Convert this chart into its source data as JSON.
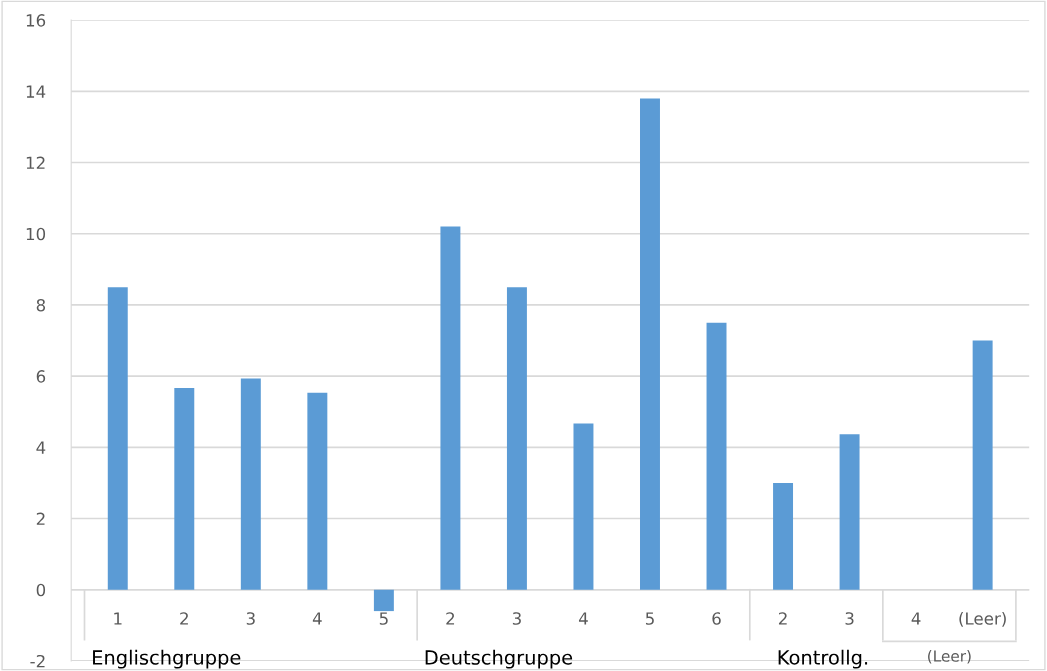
{
  "chart_data": {
    "type": "bar",
    "categories": [
      "1",
      "2",
      "3",
      "4",
      "5",
      "2",
      "3",
      "4",
      "5",
      "6",
      "2",
      "3",
      "4",
      "(Leer)"
    ],
    "values": [
      8.5,
      5.67,
      5.93,
      5.53,
      -0.6,
      10.2,
      8.5,
      4.67,
      13.8,
      7.5,
      3.0,
      4.37,
      null,
      7.0
    ],
    "color": "#5b9bd5",
    "ylim": [
      -2,
      16
    ],
    "yticks": [
      -2,
      0,
      2,
      4,
      6,
      8,
      10,
      12,
      14,
      16
    ],
    "grid": "y",
    "annotations": [
      "Englischgruppe",
      "Deutschgruppe",
      "Kontrollg.",
      "(Leer)"
    ]
  }
}
